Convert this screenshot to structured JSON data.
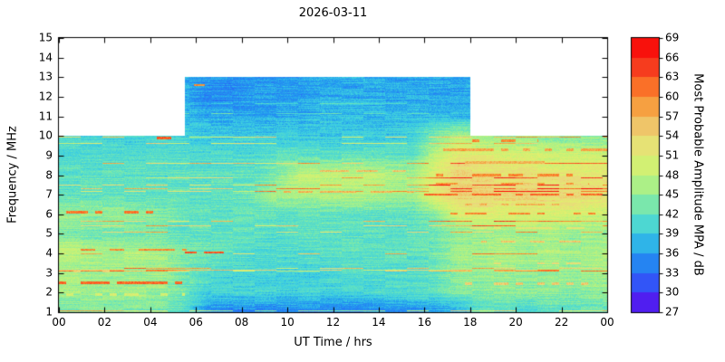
{
  "chart_data": {
    "type": "heatmap",
    "title": "2026-03-11",
    "xlabel": "UT Time / hrs",
    "ylabel": "Frequency / MHz",
    "xlim": [
      0,
      24
    ],
    "ylim": [
      1,
      15
    ],
    "x_ticks": [
      "00",
      "02",
      "04",
      "06",
      "08",
      "10",
      "12",
      "14",
      "16",
      "18",
      "20",
      "22",
      "00"
    ],
    "y_ticks": [
      1,
      2,
      3,
      4,
      5,
      6,
      7,
      8,
      9,
      10,
      11,
      12,
      13,
      14,
      15
    ],
    "grid_on": false,
    "colorbar": {
      "label": "Most Probable Amplitude MPA / dB",
      "min": 27,
      "max": 69,
      "ticks": [
        27,
        30,
        33,
        36,
        39,
        42,
        45,
        48,
        51,
        54,
        57,
        60,
        63,
        66,
        69
      ],
      "stops": [
        [
          27,
          100,
          0,
          230
        ],
        [
          30,
          60,
          60,
          250
        ],
        [
          33,
          40,
          110,
          245
        ],
        [
          36,
          35,
          155,
          240
        ],
        [
          39,
          60,
          205,
          225
        ],
        [
          42,
          95,
          225,
          195
        ],
        [
          45,
          150,
          238,
          150
        ],
        [
          48,
          195,
          242,
          120
        ],
        [
          51,
          225,
          238,
          110
        ],
        [
          54,
          235,
          215,
          125
        ],
        [
          57,
          243,
          180,
          85
        ],
        [
          60,
          250,
          140,
          45
        ],
        [
          63,
          250,
          85,
          35
        ],
        [
          66,
          242,
          35,
          25
        ],
        [
          69,
          255,
          0,
          0
        ]
      ]
    },
    "coverage": {
      "outer_max_freq_mhz": 10,
      "inner_max_freq_mhz": 13,
      "inner_start_hr": 5.5,
      "inner_end_hr": 18
    },
    "grid": {
      "hours": [
        0,
        1,
        2,
        3,
        4,
        5,
        6,
        7,
        8,
        9,
        10,
        11,
        12,
        13,
        14,
        15,
        16,
        17,
        18,
        19,
        20,
        21,
        22,
        23
      ],
      "freqs_mhz": [
        1,
        2,
        3,
        4,
        5,
        6,
        7,
        8,
        9,
        10,
        11,
        12,
        13
      ],
      "values_db": [
        [
          43,
          44,
          43,
          43,
          43,
          41,
          35,
          34,
          34,
          34,
          34,
          34,
          34,
          34,
          34,
          34,
          35,
          37,
          41,
          41,
          41,
          41,
          42,
          42
        ],
        [
          46,
          46,
          45,
          46,
          45,
          43,
          40,
          40,
          40,
          40,
          40,
          40,
          40,
          40,
          41,
          41,
          42,
          44,
          44,
          45,
          44,
          45,
          44,
          45
        ],
        [
          46,
          45,
          46,
          45,
          46,
          43,
          41,
          40,
          40,
          40,
          40,
          40,
          41,
          41,
          41,
          41,
          42,
          45,
          45,
          46,
          45,
          46,
          45,
          46
        ],
        [
          48,
          47,
          46,
          47,
          46,
          44,
          43,
          42,
          41,
          41,
          41,
          42,
          42,
          42,
          42,
          42,
          43,
          46,
          46,
          47,
          46,
          47,
          46,
          47
        ],
        [
          44,
          43,
          43,
          43,
          43,
          42,
          42,
          42,
          42,
          41,
          42,
          42,
          42,
          42,
          42,
          42,
          43,
          45,
          45,
          46,
          45,
          46,
          45,
          45
        ],
        [
          46,
          45,
          46,
          45,
          44,
          42,
          42,
          42,
          42,
          42,
          42,
          42,
          42,
          42,
          42,
          42,
          44,
          50,
          51,
          50,
          51,
          50,
          50,
          49
        ],
        [
          42,
          42,
          42,
          42,
          42,
          42,
          42,
          42,
          43,
          46,
          47,
          47,
          47,
          47,
          46,
          46,
          52,
          55,
          55,
          54,
          55,
          54,
          54,
          53
        ],
        [
          42,
          42,
          42,
          42,
          42,
          42,
          42,
          42,
          42,
          44,
          48,
          48,
          48,
          48,
          47,
          46,
          51,
          54,
          53,
          53,
          53,
          52,
          52,
          52
        ],
        [
          41,
          41,
          41,
          41,
          41,
          41,
          41,
          41,
          41,
          42,
          42,
          42,
          42,
          42,
          42,
          42,
          48,
          52,
          51,
          50,
          50,
          49,
          49,
          49
        ],
        [
          40,
          40,
          40,
          40,
          41,
          40,
          39,
          39,
          39,
          39,
          39,
          39,
          39,
          39,
          39,
          40,
          44,
          47,
          46,
          45,
          45,
          44,
          44,
          44
        ],
        [
          38,
          38,
          38,
          38,
          38,
          38,
          37,
          37,
          37,
          37,
          37,
          38,
          38,
          38,
          38,
          38,
          38,
          38,
          38,
          38,
          38,
          38,
          38,
          38
        ],
        [
          37,
          37,
          37,
          37,
          37,
          37,
          35,
          35,
          36,
          36,
          36,
          37,
          37,
          37,
          37,
          37,
          37,
          37,
          37,
          37,
          37,
          37,
          37,
          37
        ],
        [
          37,
          37,
          37,
          37,
          37,
          37,
          36,
          35,
          36,
          36,
          36,
          37,
          37,
          37,
          37,
          37,
          37,
          36,
          37,
          37,
          37,
          37,
          37,
          37
        ]
      ]
    },
    "streak_format": [
      "freq_mhz",
      "start_hr",
      "end_hr",
      "db",
      "gap_fraction"
    ],
    "streak_features": [
      [
        2.5,
        0,
        5.7,
        62,
        0.25
      ],
      [
        2.45,
        17.5,
        23.5,
        55,
        0.55
      ],
      [
        4.2,
        0,
        5.6,
        60,
        0.3
      ],
      [
        4.05,
        5.5,
        7.2,
        63,
        0.2
      ],
      [
        3.1,
        0,
        2.5,
        54,
        0.55
      ],
      [
        1.9,
        0,
        5.5,
        50,
        0.45
      ],
      [
        6.1,
        0.3,
        4.2,
        61,
        0.5
      ],
      [
        6.05,
        17,
        23.8,
        60,
        0.35
      ],
      [
        6.5,
        17.5,
        22,
        57,
        0.5
      ],
      [
        5.3,
        18,
        23,
        52,
        0.55
      ],
      [
        7.15,
        9.5,
        16,
        57,
        0.45
      ],
      [
        7.0,
        16,
        24,
        62,
        0.3
      ],
      [
        7.55,
        16.5,
        23.2,
        59,
        0.45
      ],
      [
        8.2,
        10.2,
        15.2,
        56,
        0.5
      ],
      [
        8.0,
        16,
        22.5,
        60,
        0.45
      ],
      [
        8.65,
        17,
        21.5,
        57,
        0.5
      ],
      [
        9.3,
        16.5,
        24,
        58,
        0.45
      ],
      [
        9.75,
        17,
        21,
        60,
        0.5
      ],
      [
        9.9,
        4.3,
        4.9,
        63,
        0.15
      ],
      [
        12.6,
        5.9,
        6.4,
        60,
        0.2
      ],
      [
        4.6,
        18.5,
        23.5,
        55,
        0.55
      ],
      [
        3.5,
        19,
        23,
        53,
        0.6
      ]
    ]
  }
}
